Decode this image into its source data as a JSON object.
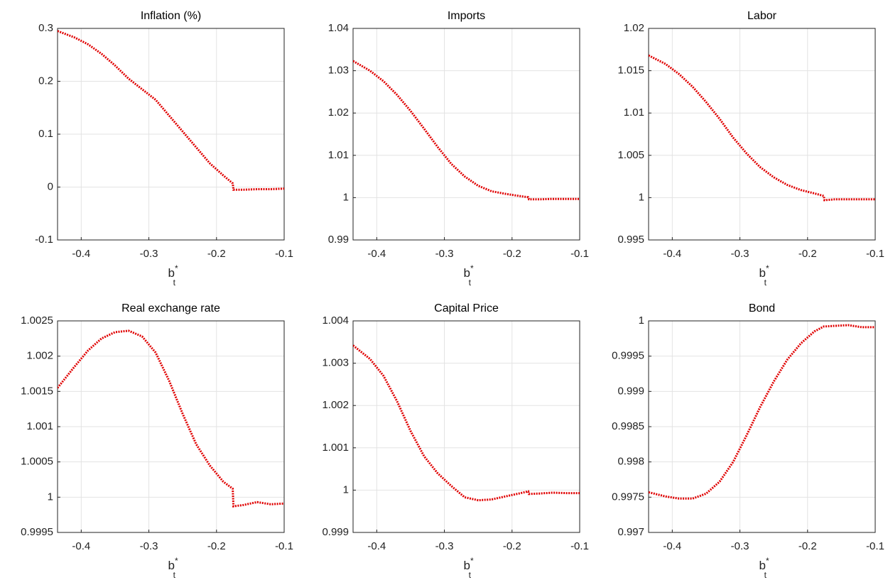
{
  "chart_data": [
    {
      "type": "line",
      "title": "Inflation (%)",
      "xlabel": {
        "text": "b",
        "subscript": "t",
        "superscript": "*"
      },
      "x": [
        -0.435,
        -0.41,
        -0.39,
        -0.37,
        -0.35,
        -0.33,
        -0.31,
        -0.29,
        -0.27,
        -0.25,
        -0.23,
        -0.21,
        -0.19,
        -0.176,
        -0.175,
        -0.16,
        -0.14,
        -0.12,
        -0.1
      ],
      "values": [
        0.295,
        0.283,
        0.27,
        0.252,
        0.23,
        0.205,
        0.185,
        0.165,
        0.135,
        0.105,
        0.075,
        0.045,
        0.022,
        0.007,
        -0.005,
        -0.005,
        -0.004,
        -0.004,
        -0.003
      ],
      "color": "#e00000",
      "xlim": [
        -0.435,
        -0.1
      ],
      "xticks": [
        -0.4,
        -0.3,
        -0.2,
        -0.1
      ],
      "ylim": [
        -0.1,
        0.3
      ],
      "yticks": [
        -0.1,
        0,
        0.1,
        0.2,
        0.3
      ],
      "grid": true
    },
    {
      "type": "line",
      "title": "Imports",
      "xlabel": {
        "text": "b",
        "subscript": "t",
        "superscript": "*"
      },
      "x": [
        -0.435,
        -0.41,
        -0.39,
        -0.37,
        -0.35,
        -0.33,
        -0.31,
        -0.29,
        -0.27,
        -0.25,
        -0.23,
        -0.21,
        -0.19,
        -0.176,
        -0.175,
        -0.16,
        -0.14,
        -0.12,
        -0.1
      ],
      "values": [
        1.0323,
        1.03,
        1.0275,
        1.0243,
        1.0205,
        1.0163,
        1.012,
        1.008,
        1.005,
        1.0028,
        1.0015,
        1.0009,
        1.0004,
        1.0001,
        0.9996,
        0.9996,
        0.9997,
        0.9997,
        0.9997
      ],
      "color": "#e00000",
      "xlim": [
        -0.435,
        -0.1
      ],
      "xticks": [
        -0.4,
        -0.3,
        -0.2,
        -0.1
      ],
      "ylim": [
        0.99,
        1.04
      ],
      "yticks": [
        0.99,
        1,
        1.01,
        1.02,
        1.03,
        1.04
      ],
      "grid": true
    },
    {
      "type": "line",
      "title": "Labor",
      "xlabel": {
        "text": "b",
        "subscript": "t",
        "superscript": "*"
      },
      "x": [
        -0.435,
        -0.41,
        -0.39,
        -0.37,
        -0.35,
        -0.33,
        -0.31,
        -0.29,
        -0.27,
        -0.25,
        -0.23,
        -0.21,
        -0.19,
        -0.176,
        -0.175,
        -0.16,
        -0.14,
        -0.12,
        -0.1
      ],
      "values": [
        1.0168,
        1.0158,
        1.0146,
        1.0131,
        1.0113,
        1.0093,
        1.0071,
        1.0052,
        1.0036,
        1.0024,
        1.0015,
        1.0009,
        1.0005,
        1.0002,
        0.9997,
        0.9998,
        0.9998,
        0.9998,
        0.9998
      ],
      "color": "#e00000",
      "xlim": [
        -0.435,
        -0.1
      ],
      "xticks": [
        -0.4,
        -0.3,
        -0.2,
        -0.1
      ],
      "ylim": [
        0.995,
        1.02
      ],
      "yticks": [
        0.995,
        1,
        1.005,
        1.01,
        1.015,
        1.02
      ],
      "grid": true
    },
    {
      "type": "line",
      "title": "Real exchange rate",
      "xlabel": {
        "text": "b",
        "subscript": "t",
        "superscript": "*"
      },
      "x": [
        -0.435,
        -0.41,
        -0.39,
        -0.37,
        -0.35,
        -0.33,
        -0.31,
        -0.29,
        -0.27,
        -0.25,
        -0.23,
        -0.21,
        -0.19,
        -0.176,
        -0.175,
        -0.16,
        -0.14,
        -0.12,
        -0.1
      ],
      "values": [
        1.00155,
        1.00185,
        1.00208,
        1.00225,
        1.00234,
        1.00236,
        1.00228,
        1.00205,
        1.00165,
        1.00118,
        1.00075,
        1.00045,
        1.00022,
        1.00012,
        0.99987,
        0.99989,
        0.99993,
        0.9999,
        0.99991
      ],
      "color": "#e00000",
      "xlim": [
        -0.435,
        -0.1
      ],
      "xticks": [
        -0.4,
        -0.3,
        -0.2,
        -0.1
      ],
      "ylim": [
        0.9995,
        1.0025
      ],
      "yticks": [
        0.9995,
        1,
        1.0005,
        1.001,
        1.0015,
        1.002,
        1.0025
      ],
      "grid": true
    },
    {
      "type": "line",
      "title": "Capital Price",
      "xlabel": {
        "text": "b",
        "subscript": "t",
        "superscript": "*"
      },
      "x": [
        -0.435,
        -0.41,
        -0.39,
        -0.37,
        -0.35,
        -0.33,
        -0.31,
        -0.29,
        -0.27,
        -0.25,
        -0.23,
        -0.21,
        -0.19,
        -0.176,
        -0.175,
        -0.16,
        -0.14,
        -0.12,
        -0.1
      ],
      "values": [
        1.00342,
        1.0031,
        1.0027,
        1.0021,
        1.0014,
        1.0008,
        1.0004,
        1.0001,
        0.99983,
        0.99976,
        0.99978,
        0.99985,
        0.99992,
        0.99997,
        0.99991,
        0.99992,
        0.99994,
        0.99993,
        0.99993
      ],
      "color": "#e00000",
      "xlim": [
        -0.435,
        -0.1
      ],
      "xticks": [
        -0.4,
        -0.3,
        -0.2,
        -0.1
      ],
      "ylim": [
        0.999,
        1.004
      ],
      "yticks": [
        0.999,
        1,
        1.001,
        1.002,
        1.003,
        1.004
      ],
      "grid": true
    },
    {
      "type": "line",
      "title": "Bond",
      "xlabel": {
        "text": "b",
        "subscript": "t",
        "superscript": "*"
      },
      "x": [
        -0.435,
        -0.41,
        -0.39,
        -0.37,
        -0.35,
        -0.33,
        -0.31,
        -0.29,
        -0.27,
        -0.25,
        -0.23,
        -0.21,
        -0.19,
        -0.176,
        -0.175,
        -0.16,
        -0.14,
        -0.12,
        -0.1
      ],
      "values": [
        0.99757,
        0.99751,
        0.99748,
        0.99748,
        0.99755,
        0.99772,
        0.998,
        0.99838,
        0.99878,
        0.99914,
        0.99945,
        0.99968,
        0.99985,
        0.99992,
        0.99992,
        0.99993,
        0.99994,
        0.99991,
        0.99991
      ],
      "color": "#e00000",
      "xlim": [
        -0.435,
        -0.1
      ],
      "xticks": [
        -0.4,
        -0.3,
        -0.2,
        -0.1
      ],
      "ylim": [
        0.997,
        1
      ],
      "yticks": [
        0.997,
        0.9975,
        0.998,
        0.9985,
        0.999,
        0.9995,
        1
      ],
      "grid": true
    }
  ]
}
